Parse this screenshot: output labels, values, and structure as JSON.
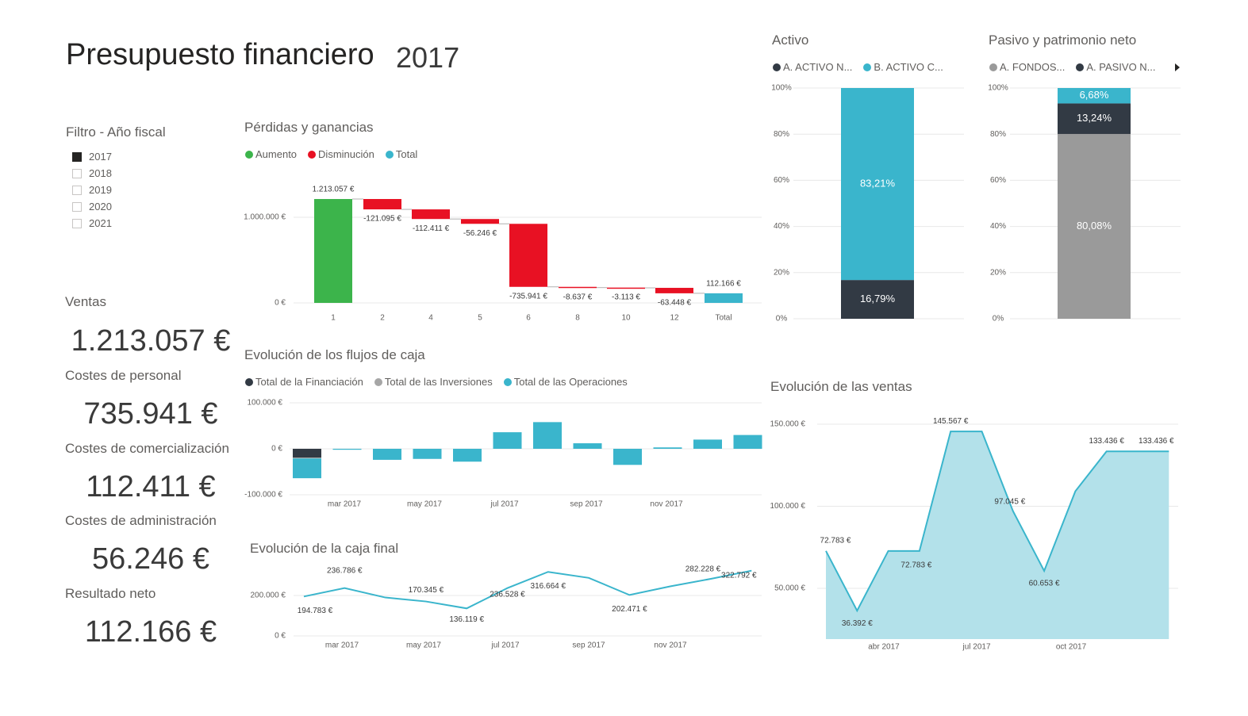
{
  "header": {
    "title": "Presupuesto financiero",
    "year": "2017"
  },
  "filter": {
    "title": "Filtro - Año fiscal",
    "options": [
      {
        "label": "2017",
        "checked": true
      },
      {
        "label": "2018",
        "checked": false
      },
      {
        "label": "2019",
        "checked": false
      },
      {
        "label": "2020",
        "checked": false
      },
      {
        "label": "2021",
        "checked": false
      }
    ]
  },
  "kpis": [
    {
      "label": "Ventas",
      "value": "1.213.057 €"
    },
    {
      "label": "Costes de personal",
      "value": "735.941 €"
    },
    {
      "label": "Costes de comercialización",
      "value": "112.411 €"
    },
    {
      "label": "Costes de administración",
      "value": "56.246 €"
    },
    {
      "label": "Resultado neto",
      "value": "112.166 €"
    }
  ],
  "colors": {
    "increase": "#3cb44b",
    "decrease": "#e81123",
    "total": "#3ab5cc",
    "dark": "#323a44",
    "gray": "#9a9a9a",
    "area": "#b3e1ea"
  },
  "chart_data": [
    {
      "id": "waterfall",
      "type": "bar",
      "subtype": "waterfall",
      "title": "Pérdidas y ganancias",
      "legend": [
        "Aumento",
        "Disminución",
        "Total"
      ],
      "legend_placement": "top-left",
      "categories": [
        "1",
        "2",
        "4",
        "5",
        "6",
        "8",
        "10",
        "12",
        "Total"
      ],
      "values": [
        1213057,
        -121095,
        -112411,
        -56246,
        -735941,
        -8637,
        -3113,
        -63448,
        112166
      ],
      "data_labels": [
        "1.213.057 €",
        "-121.095 €",
        "-112.411 €",
        "-56.246 €",
        "-735.941 €",
        "-8.637 €",
        "-3.113 €",
        "-63.448 €",
        "112.166 €"
      ],
      "y_ticks": [
        "0 €",
        "1.000.000 €"
      ],
      "y_tick_values": [
        0,
        1000000
      ],
      "grid": true
    },
    {
      "id": "cashflow",
      "type": "bar",
      "subtype": "stacked",
      "title": "Evolución de los flujos de caja",
      "legend_placement": "top-left",
      "x": [
        "ene 2017",
        "feb 2017",
        "mar 2017",
        "abr 2017",
        "may 2017",
        "jun 2017",
        "jul 2017",
        "ago 2017",
        "sep 2017",
        "oct 2017",
        "nov 2017",
        "dic 2017"
      ],
      "x_tick_labels": [
        "mar 2017",
        "may 2017",
        "jul 2017",
        "sep 2017",
        "nov 2017"
      ],
      "series": [
        {
          "name": "Total de la Financiación",
          "color": "#323a44",
          "values": [
            -19000,
            0,
            0,
            0,
            0,
            0,
            0,
            0,
            0,
            0,
            0,
            0
          ]
        },
        {
          "name": "Total de las Inversiones",
          "color": "#a6a6a6",
          "values": [
            -2000,
            0,
            0,
            0,
            0,
            0,
            0,
            0,
            0,
            0,
            0,
            0
          ]
        },
        {
          "name": "Total de las Operaciones",
          "color": "#3ab5cc",
          "values": [
            -43000,
            -2000,
            -24000,
            -22000,
            -28000,
            36000,
            58000,
            12000,
            -35000,
            3000,
            20000,
            30000
          ]
        }
      ],
      "y_ticks": [
        "100.000 €",
        "0 €",
        "-100.000 €"
      ],
      "y_tick_values": [
        100000,
        0,
        -100000
      ],
      "ylim": [
        -100000,
        100000
      ],
      "grid": true
    },
    {
      "id": "caja",
      "type": "line",
      "title": "Evolución de la caja final",
      "x": [
        "ene 2017",
        "feb 2017",
        "mar 2017",
        "abr 2017",
        "may 2017",
        "jun 2017",
        "jul 2017",
        "ago 2017",
        "sep 2017",
        "oct 2017",
        "nov 2017",
        "dic 2017"
      ],
      "x_tick_labels": [
        "mar 2017",
        "may 2017",
        "jul 2017",
        "sep 2017",
        "nov 2017"
      ],
      "values": [
        194783,
        236786,
        190000,
        170345,
        136119,
        236528,
        316664,
        287000,
        202471,
        245000,
        282228,
        322792
      ],
      "data_labels": [
        "194.783 €",
        "236.786 €",
        null,
        "170.345 €",
        "136.119 €",
        "236.528 €",
        "316.664 €",
        null,
        "202.471 €",
        null,
        "282.228 €",
        "322.792 €"
      ],
      "y_ticks": [
        "0 €",
        "200.000 €"
      ],
      "y_tick_values": [
        0,
        200000
      ],
      "color": "#3ab5cc",
      "grid": true
    },
    {
      "id": "activo",
      "type": "bar",
      "subtype": "100% stacked",
      "title": "Activo",
      "series": [
        {
          "name": "A. ACTIVO N...",
          "color": "#323a44",
          "value": 16.79,
          "label": "16,79%"
        },
        {
          "name": "B. ACTIVO C...",
          "color": "#3ab5cc",
          "value": 83.21,
          "label": "83,21%"
        }
      ],
      "y_ticks": [
        "0%",
        "20%",
        "40%",
        "60%",
        "80%",
        "100%"
      ],
      "y_tick_values": [
        0,
        20,
        40,
        60,
        80,
        100
      ],
      "grid": true
    },
    {
      "id": "pasivo",
      "type": "bar",
      "subtype": "100% stacked",
      "title": "Pasivo y patrimonio neto",
      "series": [
        {
          "name": "A. FONDOS...",
          "color": "#9a9a9a",
          "value": 80.08,
          "label": "80,08%"
        },
        {
          "name": "A. PASIVO N...",
          "color": "#323a44",
          "value": 13.24,
          "label": "13,24%"
        },
        {
          "name": "",
          "color": "#3ab5cc",
          "value": 6.68,
          "label": "6,68%"
        }
      ],
      "y_ticks": [
        "0%",
        "20%",
        "40%",
        "60%",
        "80%",
        "100%"
      ],
      "y_tick_values": [
        0,
        20,
        40,
        60,
        80,
        100
      ],
      "grid": true
    },
    {
      "id": "ventas",
      "type": "area",
      "title": "Evolución de las ventas",
      "x": [
        "ene 2017",
        "feb 2017",
        "mar 2017",
        "abr 2017",
        "may 2017",
        "jun 2017",
        "jul 2017",
        "ago 2017",
        "sep 2017",
        "oct 2017",
        "nov 2017",
        "dic 2017"
      ],
      "x_tick_labels": [
        "abr 2017",
        "jul 2017",
        "oct 2017"
      ],
      "values": [
        72783,
        36392,
        72783,
        72783,
        145567,
        145567,
        97045,
        60653,
        109176,
        133436,
        133436,
        133436
      ],
      "data_labels": [
        "72.783 €",
        "36.392 €",
        null,
        "72.783 €",
        "145.567 €",
        null,
        "97.045 €",
        "60.653 €",
        null,
        "133.436 €",
        null,
        "133.436 €"
      ],
      "y_ticks": [
        "50.000 €",
        "100.000 €",
        "150.000 €"
      ],
      "y_tick_values": [
        50000,
        100000,
        150000
      ],
      "color": "#3ab5cc",
      "grid": true
    }
  ]
}
